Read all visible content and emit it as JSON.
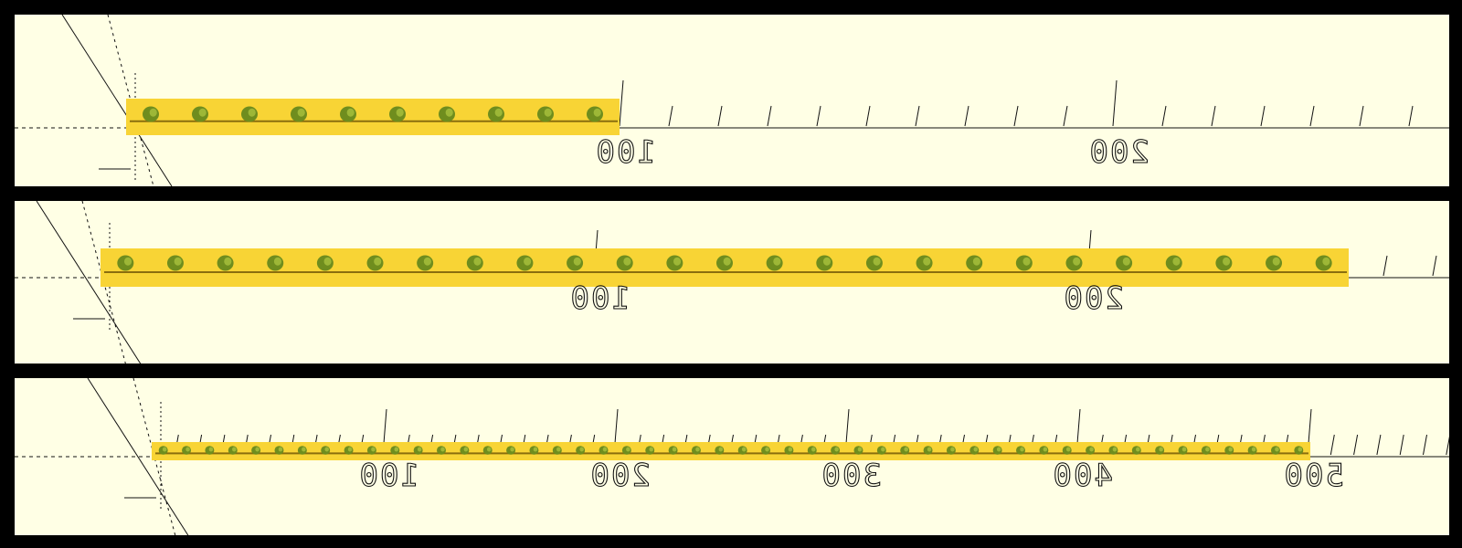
{
  "colors": {
    "background": "#ffffe5",
    "frame": "#000000",
    "beam": "#f8d435",
    "beam_edge": "#8a6e0e",
    "hole": "#6f8d1e",
    "axis": "#111111"
  },
  "views": [
    {
      "id": "view-1",
      "hole_count": 10,
      "axis_labels": [
        "100",
        "200"
      ]
    },
    {
      "id": "view-2",
      "hole_count": 25,
      "axis_labels": [
        "100",
        "200"
      ]
    },
    {
      "id": "view-3",
      "hole_count": 50,
      "axis_labels": [
        "100",
        "200",
        "300",
        "400",
        "500"
      ]
    }
  ]
}
